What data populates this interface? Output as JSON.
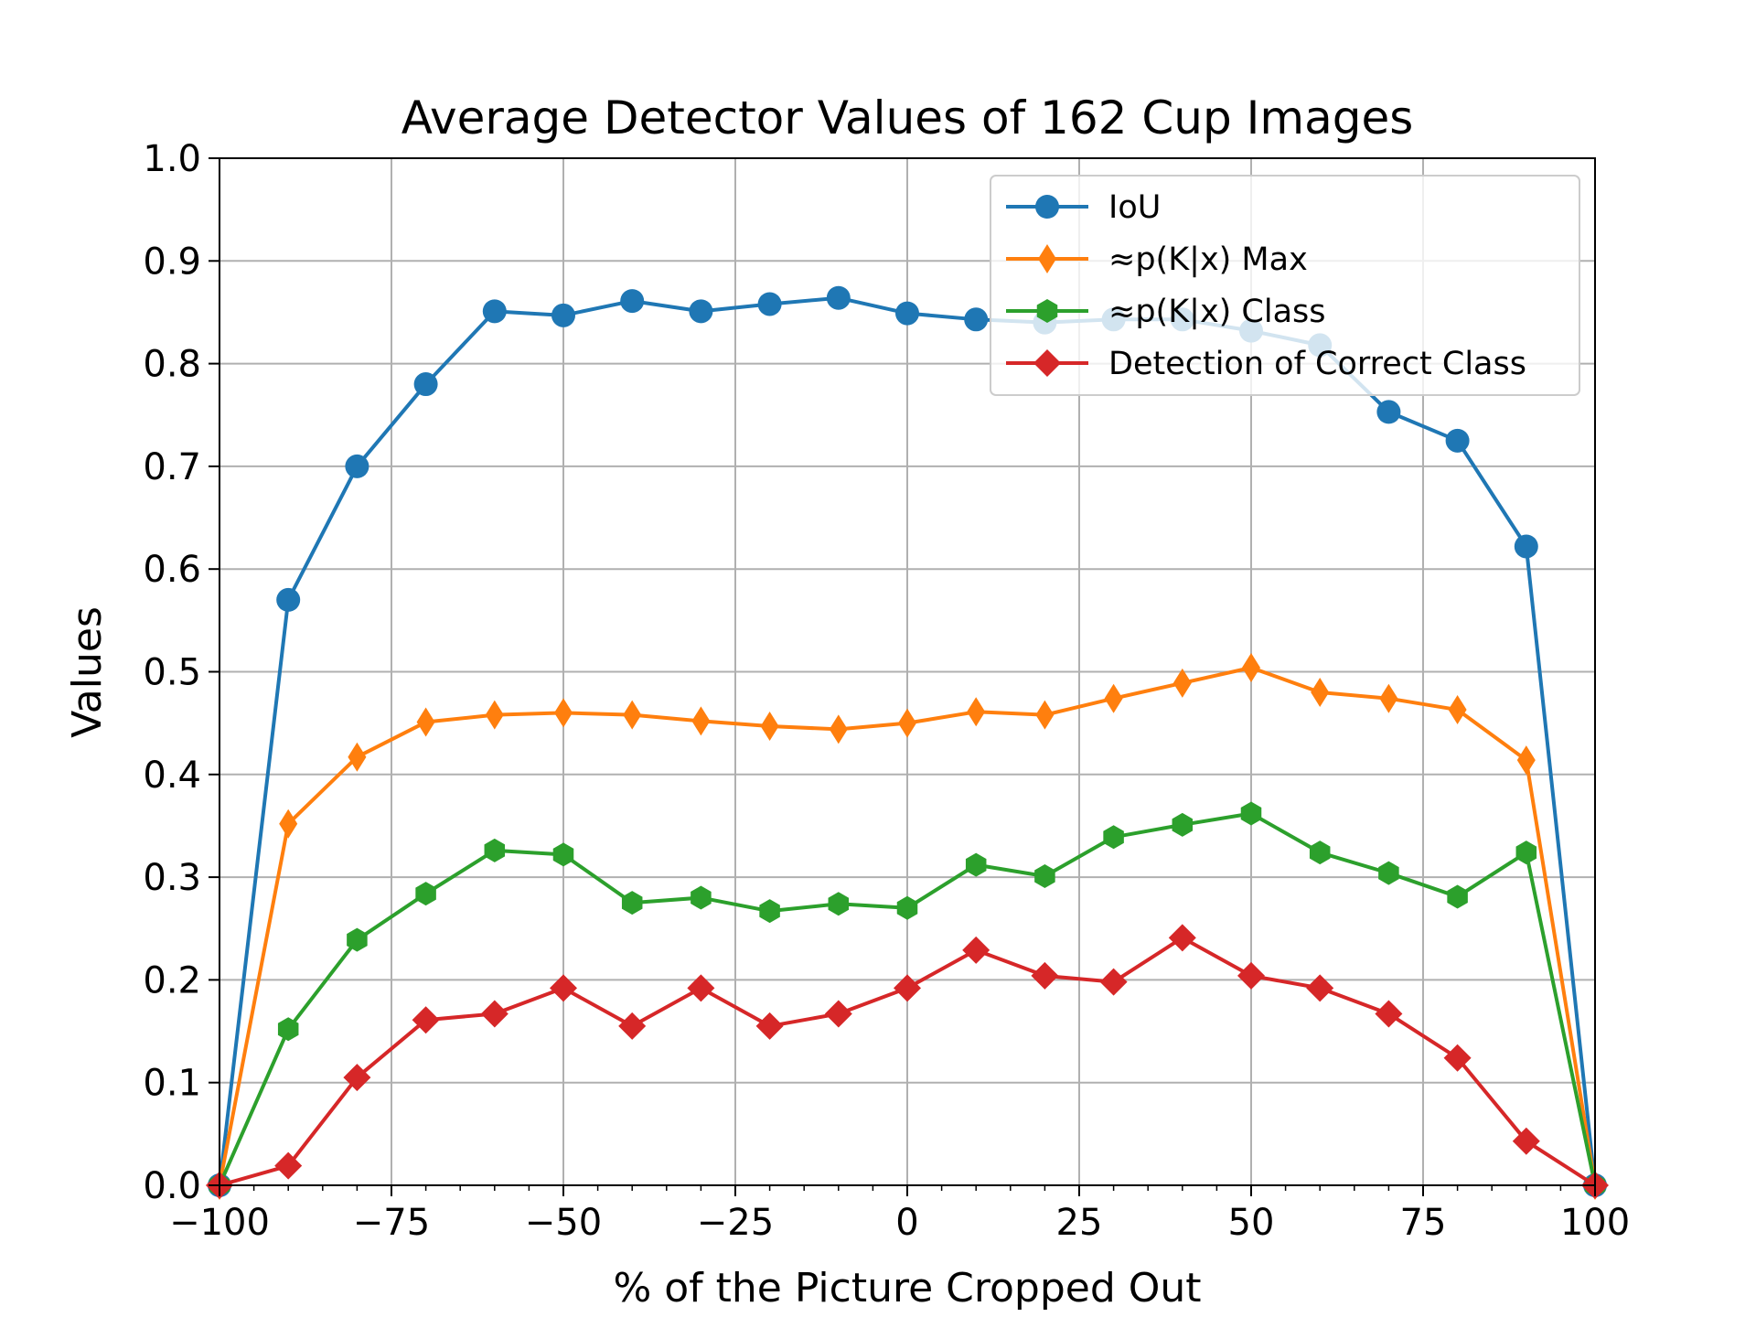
{
  "chart_data": {
    "type": "line",
    "title": "Average Detector Values of 162 Cup Images",
    "xlabel": "% of the Picture Cropped Out",
    "ylabel": "Values",
    "xlim": [
      -100,
      100
    ],
    "ylim": [
      0.0,
      1.0
    ],
    "x_ticks": [
      -100,
      -75,
      -50,
      -25,
      0,
      25,
      50,
      75,
      100
    ],
    "x_tick_labels": [
      "−100",
      "−75",
      "−50",
      "−25",
      "0",
      "25",
      "50",
      "75",
      "100"
    ],
    "y_ticks": [
      0.0,
      0.1,
      0.2,
      0.3,
      0.4,
      0.5,
      0.6,
      0.7,
      0.8,
      0.9,
      1.0
    ],
    "y_tick_labels": [
      "0.0",
      "0.1",
      "0.2",
      "0.3",
      "0.4",
      "0.5",
      "0.6",
      "0.7",
      "0.8",
      "0.9",
      "1.0"
    ],
    "grid": true,
    "legend_position": "top-right",
    "x": [
      -100,
      -90,
      -80,
      -70,
      -60,
      -50,
      -40,
      -30,
      -20,
      -10,
      0,
      10,
      20,
      30,
      40,
      50,
      60,
      70,
      80,
      90,
      100
    ],
    "series": [
      {
        "name": "IoU",
        "color": "#1f77b4",
        "marker": "circle",
        "values": [
          0.0,
          0.57,
          0.7,
          0.78,
          0.851,
          0.847,
          0.861,
          0.851,
          0.858,
          0.864,
          0.849,
          0.843,
          0.84,
          0.843,
          0.843,
          0.832,
          0.818,
          0.753,
          0.725,
          0.622,
          0.0
        ]
      },
      {
        "name": "≈p(K|x) Max",
        "color": "#ff7f0e",
        "marker": "thin-diamond",
        "values": [
          0.0,
          0.352,
          0.417,
          0.451,
          0.458,
          0.46,
          0.458,
          0.452,
          0.447,
          0.444,
          0.45,
          0.461,
          0.458,
          0.474,
          0.489,
          0.504,
          0.48,
          0.474,
          0.463,
          0.414,
          0.0
        ]
      },
      {
        "name": "≈p(K|x) Class",
        "color": "#2ca02c",
        "marker": "hexagon",
        "values": [
          0.0,
          0.152,
          0.239,
          0.284,
          0.326,
          0.322,
          0.275,
          0.28,
          0.267,
          0.274,
          0.27,
          0.312,
          0.301,
          0.339,
          0.351,
          0.362,
          0.324,
          0.304,
          0.281,
          0.324,
          0.0
        ]
      },
      {
        "name": "Detection of Correct Class",
        "color": "#d62728",
        "marker": "diamond",
        "values": [
          0.0,
          0.019,
          0.105,
          0.161,
          0.167,
          0.192,
          0.155,
          0.192,
          0.155,
          0.167,
          0.192,
          0.229,
          0.204,
          0.198,
          0.241,
          0.204,
          0.192,
          0.167,
          0.124,
          0.043,
          0.0
        ]
      }
    ]
  }
}
